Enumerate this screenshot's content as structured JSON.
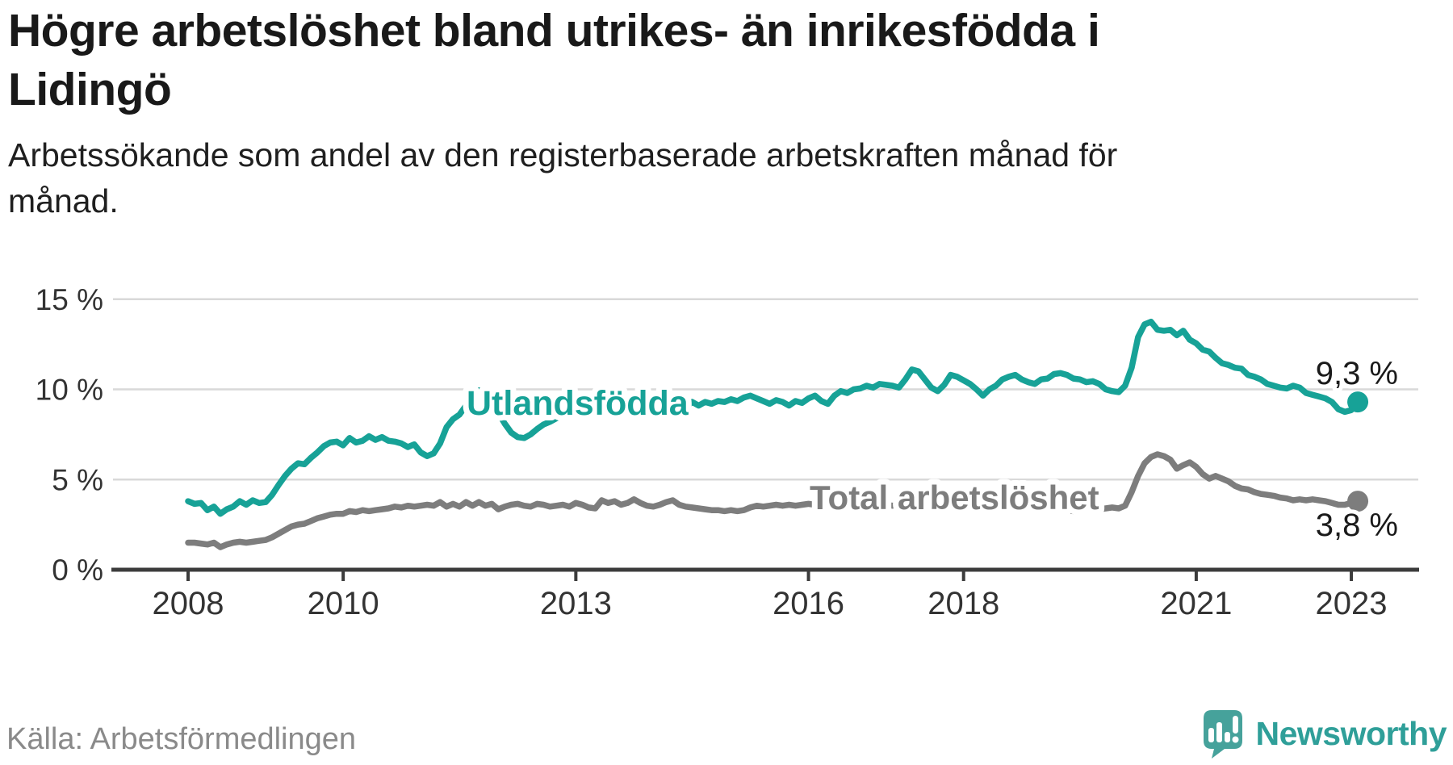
{
  "header": {
    "title_line1": "Högre arbetslöshet bland utrikes- än inrikesfödda i",
    "title_line2": "Lidingö",
    "subtitle_line1": "Arbetssökande som andel av den registerbaserade arbetskraften månad för",
    "subtitle_line2": "månad."
  },
  "footer": {
    "source": "Källa: Arbetsförmedlingen",
    "brand": "Newsworthy"
  },
  "colors": {
    "accent_teal": "#17a297",
    "series_gray": "#7d7d7d",
    "end_label": "#1a1a1a",
    "tick_label": "#333333",
    "gridline": "#d9d9d9",
    "axis": "#3c3c3c",
    "brand_teal": "#2f9f99",
    "logo_teal": "#46a29b"
  },
  "chart_data": {
    "type": "line",
    "title": "Högre arbetslöshet bland utrikes- än inrikesfödda i Lidingö",
    "subtitle": "Arbetssökande som andel av den registerbaserade arbetskraften månad för månad.",
    "xlabel": "",
    "ylabel": "",
    "frequency": "monthly",
    "x_start_year": 2008,
    "x_end": "2023-02",
    "ylim": [
      0,
      15.8
    ],
    "grid": true,
    "legend_position": "inline-labels",
    "y_ticks": [
      {
        "value": 0,
        "label": "0 %"
      },
      {
        "value": 5,
        "label": "5 %"
      },
      {
        "value": 10,
        "label": "10 %"
      },
      {
        "value": 15,
        "label": "15 %"
      }
    ],
    "x_ticks": [
      {
        "value": 2008,
        "label": "2008"
      },
      {
        "value": 2010,
        "label": "2010"
      },
      {
        "value": 2013,
        "label": "2013"
      },
      {
        "value": 2016,
        "label": "2016"
      },
      {
        "value": 2018,
        "label": "2018"
      },
      {
        "value": 2021,
        "label": "2021"
      },
      {
        "value": 2023,
        "label": "2023"
      }
    ],
    "series": [
      {
        "name": "Utlandsfödda",
        "color": "#17a297",
        "end_label": "9,3 %",
        "end_value": 9.3,
        "values": [
          3.8,
          3.65,
          3.7,
          3.3,
          3.5,
          3.1,
          3.35,
          3.5,
          3.8,
          3.6,
          3.85,
          3.7,
          3.75,
          4.15,
          4.7,
          5.2,
          5.6,
          5.9,
          5.85,
          6.2,
          6.5,
          6.85,
          7.05,
          7.1,
          6.9,
          7.3,
          7.05,
          7.15,
          7.4,
          7.2,
          7.35,
          7.15,
          7.1,
          7.0,
          6.8,
          6.95,
          6.5,
          6.3,
          6.45,
          7.0,
          7.9,
          8.35,
          8.6,
          9.1,
          9.6,
          9.95,
          9.7,
          9.3,
          8.7,
          8.1,
          7.6,
          7.35,
          7.3,
          7.5,
          7.8,
          8.05,
          8.2,
          8.4,
          8.6,
          8.75,
          8.9,
          9.05,
          9.2,
          9.35,
          9.45,
          9.35,
          9.3,
          9.45,
          9.35,
          9.45,
          9.5,
          9.45,
          9.35,
          9.2,
          9.3,
          9.1,
          9.2,
          9.0,
          9.3,
          9.1,
          9.3,
          9.2,
          9.35,
          9.3,
          9.45,
          9.35,
          9.55,
          9.65,
          9.5,
          9.35,
          9.2,
          9.4,
          9.3,
          9.1,
          9.35,
          9.25,
          9.5,
          9.65,
          9.35,
          9.2,
          9.65,
          9.9,
          9.8,
          10.0,
          10.05,
          10.2,
          10.1,
          10.3,
          10.25,
          10.2,
          10.1,
          10.55,
          11.1,
          11.0,
          10.55,
          10.1,
          9.9,
          10.25,
          10.8,
          10.7,
          10.5,
          10.3,
          10.0,
          9.65,
          10.0,
          10.2,
          10.55,
          10.7,
          10.8,
          10.55,
          10.4,
          10.3,
          10.55,
          10.6,
          10.85,
          10.9,
          10.8,
          10.6,
          10.55,
          10.4,
          10.45,
          10.3,
          10.0,
          9.9,
          9.85,
          10.2,
          11.2,
          12.9,
          13.6,
          13.75,
          13.3,
          13.25,
          13.3,
          13.0,
          13.25,
          12.75,
          12.55,
          12.2,
          12.1,
          11.75,
          11.45,
          11.35,
          11.2,
          11.15,
          10.8,
          10.7,
          10.55,
          10.3,
          10.2,
          10.1,
          10.05,
          10.2,
          10.1,
          9.8,
          9.7,
          9.6,
          9.5,
          9.3,
          8.9,
          8.75,
          8.85,
          9.3
        ]
      },
      {
        "name": "Total arbetslöshet",
        "color": "#7d7d7d",
        "end_label": "3,8 %",
        "end_value": 3.8,
        "values": [
          1.5,
          1.5,
          1.45,
          1.4,
          1.5,
          1.25,
          1.4,
          1.5,
          1.55,
          1.5,
          1.55,
          1.6,
          1.65,
          1.8,
          2.0,
          2.2,
          2.4,
          2.5,
          2.55,
          2.7,
          2.85,
          2.95,
          3.05,
          3.1,
          3.1,
          3.25,
          3.2,
          3.3,
          3.25,
          3.3,
          3.35,
          3.4,
          3.5,
          3.45,
          3.55,
          3.5,
          3.55,
          3.6,
          3.55,
          3.75,
          3.5,
          3.65,
          3.5,
          3.75,
          3.55,
          3.75,
          3.55,
          3.65,
          3.35,
          3.5,
          3.6,
          3.65,
          3.55,
          3.5,
          3.65,
          3.6,
          3.5,
          3.55,
          3.6,
          3.5,
          3.7,
          3.6,
          3.45,
          3.4,
          3.85,
          3.7,
          3.8,
          3.6,
          3.7,
          3.9,
          3.7,
          3.55,
          3.5,
          3.6,
          3.75,
          3.85,
          3.6,
          3.5,
          3.45,
          3.4,
          3.35,
          3.3,
          3.3,
          3.25,
          3.3,
          3.25,
          3.3,
          3.45,
          3.55,
          3.5,
          3.55,
          3.6,
          3.55,
          3.6,
          3.55,
          3.6,
          3.65,
          3.6,
          3.55,
          3.5,
          3.55,
          3.45,
          3.55,
          3.5,
          3.6,
          3.55,
          3.5,
          3.55,
          3.6,
          3.55,
          3.6,
          3.65,
          3.6,
          3.55,
          3.5,
          3.55,
          3.6,
          3.55,
          3.6,
          3.55,
          3.6,
          3.55,
          3.5,
          3.45,
          3.5,
          3.55,
          3.6,
          3.65,
          3.6,
          3.55,
          3.5,
          3.45,
          3.4,
          3.35,
          3.3,
          3.35,
          3.3,
          3.25,
          3.3,
          3.35,
          3.4,
          3.35,
          3.4,
          3.45,
          3.4,
          3.55,
          4.3,
          5.2,
          5.9,
          6.25,
          6.4,
          6.3,
          6.1,
          5.6,
          5.8,
          5.95,
          5.7,
          5.3,
          5.05,
          5.2,
          5.05,
          4.9,
          4.65,
          4.5,
          4.45,
          4.3,
          4.2,
          4.15,
          4.1,
          4.0,
          3.95,
          3.85,
          3.9,
          3.85,
          3.9,
          3.85,
          3.8,
          3.7,
          3.6,
          3.6,
          3.7,
          3.8
        ]
      }
    ]
  }
}
